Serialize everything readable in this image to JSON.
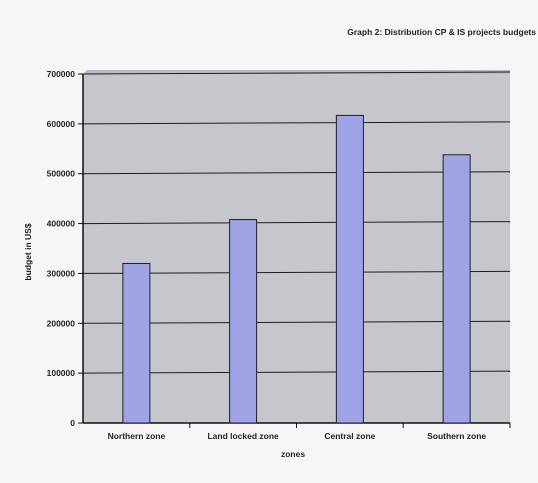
{
  "chart_data": {
    "type": "bar",
    "title": "Graph 2: Distribution CP & IS projects budgets",
    "xlabel": "zones",
    "ylabel": "budget in US$",
    "categories": [
      "Northern zone",
      "Land locked zone",
      "Central zone",
      "Southern zone"
    ],
    "values": [
      320000,
      408000,
      617000,
      538000
    ],
    "ylim": [
      0,
      700000
    ],
    "yticks": [
      "0",
      "100000",
      "200000",
      "300000",
      "400000",
      "500000",
      "600000",
      "700000"
    ],
    "grid": true,
    "legend": "none",
    "colors": {
      "bar_fill": "#9fa3e6",
      "bar_stroke": "#1e1e2a",
      "plot_bg": "#c6c7cd",
      "grid": "#1e1e22"
    }
  }
}
